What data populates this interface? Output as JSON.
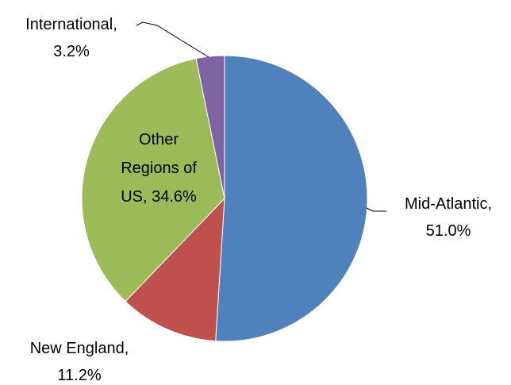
{
  "chart_data": {
    "type": "pie",
    "categories": [
      "Mid-Atlantic,",
      "New England,",
      "Other Regions of US,",
      "International,"
    ],
    "values": [
      51.0,
      11.2,
      34.6,
      3.2
    ],
    "value_labels": [
      "51.0%",
      "11.2%",
      "34.6%",
      "3.2%"
    ],
    "colors": [
      "#4f81bd",
      "#c0504d",
      "#9bbb59",
      "#8064a2"
    ]
  }
}
